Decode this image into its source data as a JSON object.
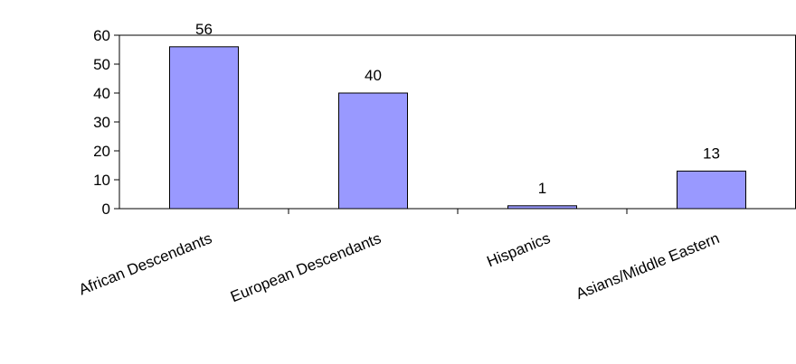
{
  "chart_data": {
    "type": "bar",
    "categories": [
      "African Descendants",
      "European Descendants",
      "Hispanics",
      "Asians/Middle Eastern"
    ],
    "values": [
      56,
      40,
      1,
      13
    ],
    "data_labels": [
      "56",
      "40",
      "1",
      "13"
    ],
    "title": "",
    "xlabel": "",
    "ylabel": "",
    "ylim": [
      0,
      60
    ],
    "yticks": [
      0,
      10,
      20,
      30,
      40,
      50,
      60
    ],
    "ytick_labels": [
      "0",
      "10",
      "20",
      "30",
      "40",
      "50",
      "60"
    ],
    "grid": false,
    "legend": "none",
    "bar_color": "#9999ff",
    "bar_edge_color": "#000000"
  }
}
